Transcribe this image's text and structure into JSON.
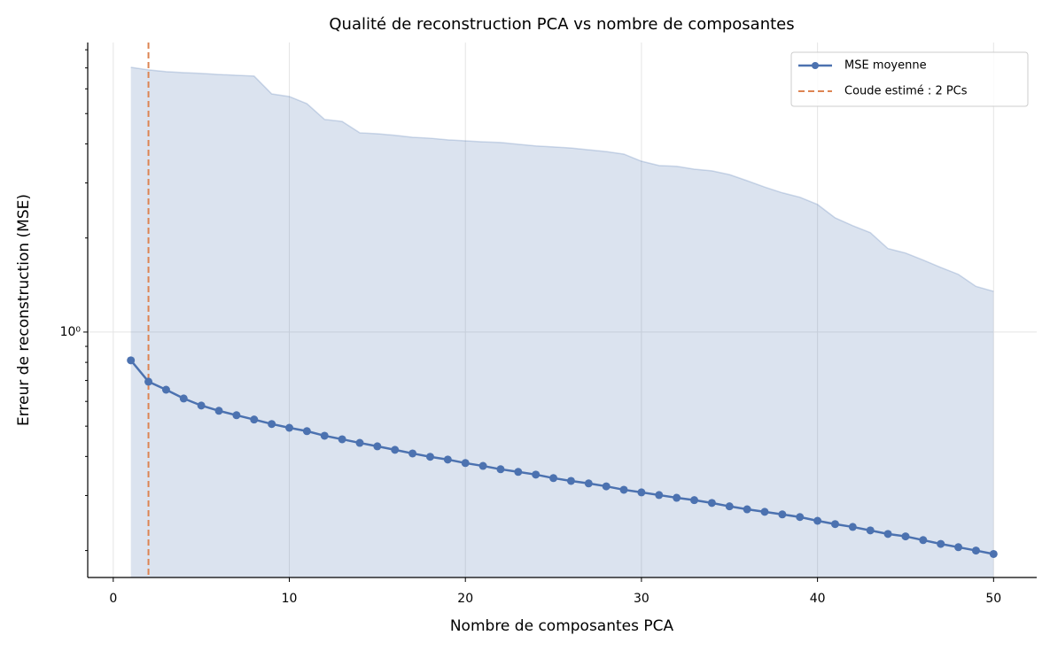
{
  "chart_data": {
    "type": "line",
    "title": "Qualité de reconstruction PCA vs nombre de composantes",
    "xlabel": "Nombre de composantes PCA",
    "ylabel": "Erreur de reconstruction (MSE)",
    "x": [
      1,
      2,
      3,
      4,
      5,
      6,
      7,
      8,
      9,
      10,
      11,
      12,
      13,
      14,
      15,
      16,
      17,
      18,
      19,
      20,
      21,
      22,
      23,
      24,
      25,
      26,
      27,
      28,
      29,
      30,
      31,
      32,
      33,
      34,
      35,
      36,
      37,
      38,
      39,
      40,
      41,
      42,
      43,
      44,
      45,
      46,
      47,
      48,
      49,
      50
    ],
    "series": [
      {
        "name": "MSE moyenne",
        "color": "#4c72b0",
        "values": [
          0.812,
          0.694,
          0.654,
          0.613,
          0.582,
          0.56,
          0.542,
          0.525,
          0.508,
          0.494,
          0.482,
          0.466,
          0.454,
          0.442,
          0.431,
          0.42,
          0.409,
          0.399,
          0.391,
          0.381,
          0.373,
          0.364,
          0.357,
          0.35,
          0.341,
          0.334,
          0.328,
          0.321,
          0.313,
          0.307,
          0.301,
          0.295,
          0.29,
          0.284,
          0.277,
          0.271,
          0.266,
          0.261,
          0.256,
          0.249,
          0.243,
          0.238,
          0.232,
          0.226,
          0.222,
          0.216,
          0.21,
          0.205,
          0.2,
          0.195
        ]
      }
    ],
    "band": {
      "color": "#4c72b0",
      "values": [
        7.03,
        6.9,
        6.81,
        6.76,
        6.72,
        6.67,
        6.63,
        6.59,
        5.78,
        5.67,
        5.38,
        4.79,
        4.72,
        4.34,
        4.31,
        4.26,
        4.2,
        4.17,
        4.12,
        4.09,
        4.06,
        4.04,
        3.99,
        3.94,
        3.91,
        3.88,
        3.83,
        3.78,
        3.71,
        3.52,
        3.41,
        3.39,
        3.32,
        3.28,
        3.19,
        3.05,
        2.91,
        2.79,
        2.7,
        2.56,
        2.32,
        2.19,
        2.08,
        1.85,
        1.79,
        1.7,
        1.61,
        1.53,
        1.4,
        1.35
      ]
    },
    "vline": {
      "name": "Coude estimé : 2 PCs",
      "x": 2,
      "color": "#dd8452"
    },
    "xlim": [
      -1.45,
      52.45
    ],
    "xticks": [
      0,
      10,
      20,
      30,
      40,
      50
    ],
    "ylim": [
      0.164,
      8.44
    ],
    "yscale": "log",
    "yticks": [
      {
        "value": 1,
        "label": "10⁰"
      }
    ],
    "yminor": [
      0.2,
      0.3,
      0.4,
      0.5,
      0.6,
      0.7,
      0.8,
      0.9,
      2,
      3,
      4,
      5,
      6,
      7,
      8
    ],
    "grid": true,
    "legend": "upper right"
  }
}
